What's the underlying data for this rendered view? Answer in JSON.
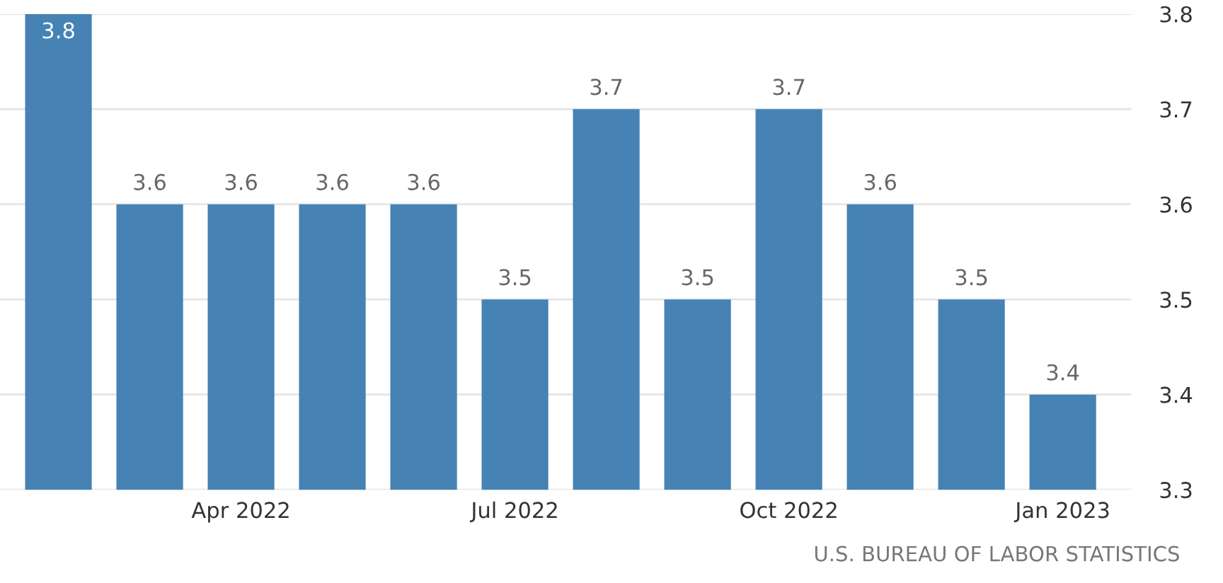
{
  "chart_data": {
    "type": "bar",
    "categories": [
      null,
      null,
      "Apr 2022",
      null,
      null,
      "Jul 2022",
      null,
      null,
      "Oct 2022",
      null,
      null,
      "Jan 2023"
    ],
    "values": [
      3.8,
      3.6,
      3.6,
      3.6,
      3.6,
      3.5,
      3.7,
      3.5,
      3.7,
      3.6,
      3.5,
      3.4
    ],
    "color": "#4682b4",
    "ylim": [
      3.3,
      3.8
    ],
    "yticks": [
      3.3,
      3.4,
      3.5,
      3.6,
      3.7,
      3.8
    ],
    "grid": "y",
    "data_labels": true,
    "annotations": [
      "U.S. BUREAU OF LABOR STATISTICS"
    ]
  }
}
